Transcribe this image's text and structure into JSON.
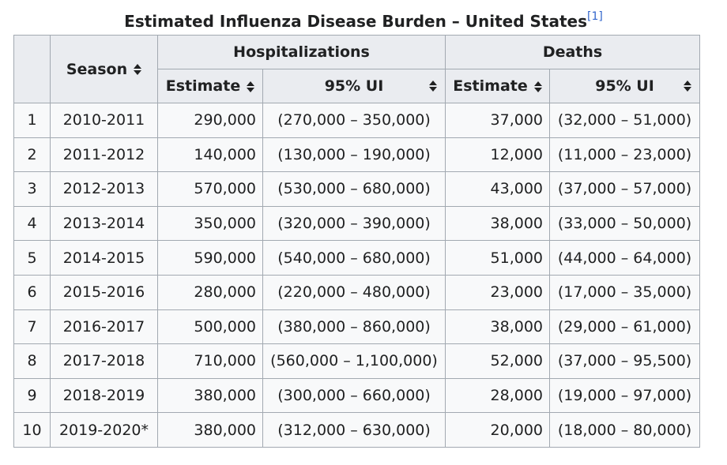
{
  "caption": {
    "title": "Estimated Influenza Disease Burden – United States",
    "ref": "[1]"
  },
  "headers": {
    "season": "Season",
    "hospitalizations": "Hospitalizations",
    "deaths": "Deaths",
    "estimate": "Estimate",
    "ui": "95% UI"
  },
  "rows": [
    {
      "n": "1",
      "season": "2010-2011",
      "hosp_est": "290,000",
      "hosp_ui": "(270,000 – 350,000)",
      "death_est": "37,000",
      "death_ui": "(32,000 – 51,000)"
    },
    {
      "n": "2",
      "season": "2011-2012",
      "hosp_est": "140,000",
      "hosp_ui": "(130,000 – 190,000)",
      "death_est": "12,000",
      "death_ui": "(11,000 – 23,000)"
    },
    {
      "n": "3",
      "season": "2012-2013",
      "hosp_est": "570,000",
      "hosp_ui": "(530,000 – 680,000)",
      "death_est": "43,000",
      "death_ui": "(37,000 – 57,000)"
    },
    {
      "n": "4",
      "season": "2013-2014",
      "hosp_est": "350,000",
      "hosp_ui": "(320,000 – 390,000)",
      "death_est": "38,000",
      "death_ui": "(33,000 – 50,000)"
    },
    {
      "n": "5",
      "season": "2014-2015",
      "hosp_est": "590,000",
      "hosp_ui": "(540,000 – 680,000)",
      "death_est": "51,000",
      "death_ui": "(44,000 – 64,000)"
    },
    {
      "n": "6",
      "season": "2015-2016",
      "hosp_est": "280,000",
      "hosp_ui": "(220,000 – 480,000)",
      "death_est": "23,000",
      "death_ui": "(17,000 – 35,000)"
    },
    {
      "n": "7",
      "season": "2016-2017",
      "hosp_est": "500,000",
      "hosp_ui": "(380,000 – 860,000)",
      "death_est": "38,000",
      "death_ui": "(29,000 – 61,000)"
    },
    {
      "n": "8",
      "season": "2017-2018",
      "hosp_est": "710,000",
      "hosp_ui": "(560,000 – 1,100,000)",
      "death_est": "52,000",
      "death_ui": "(37,000 – 95,500)"
    },
    {
      "n": "9",
      "season": "2018-2019",
      "hosp_est": "380,000",
      "hosp_ui": "(300,000 – 660,000)",
      "death_est": "28,000",
      "death_ui": "(19,000 – 97,000)"
    },
    {
      "n": "10",
      "season": "2019-2020*",
      "hosp_est": "380,000",
      "hosp_ui": "(312,000 – 630,000)",
      "death_est": "20,000",
      "death_ui": "(18,000 – 80,000)"
    }
  ],
  "colors": {
    "header_bg": "#eaecf0",
    "cell_bg": "#f8f9fa",
    "border": "#a2a9b1",
    "text": "#202122",
    "link": "#3366cc"
  },
  "icons": {
    "sort": "sort-icon"
  }
}
